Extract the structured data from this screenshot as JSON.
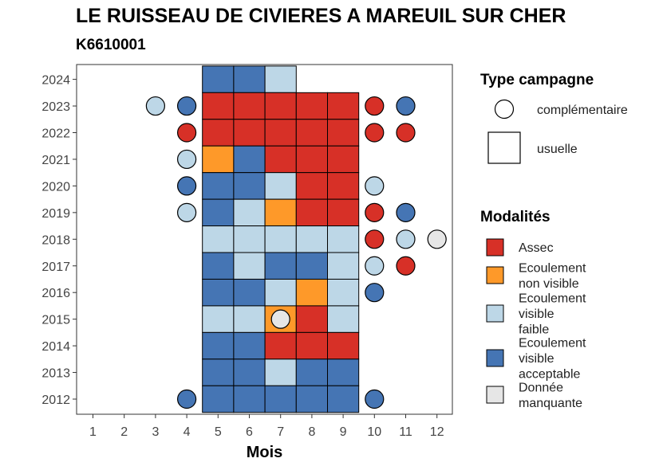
{
  "title": "LE RUISSEAU DE CIVIERES A MAREUIL SUR CHER",
  "subtitle": "K6610001",
  "colors": {
    "Assec": "#D73027",
    "Ecoulement non visible": "#FE9929",
    "Ecoulement visible faible": "#BDD7E7",
    "Ecoulement visible acceptable": "#4575B4",
    "Donnée manquante": "#E6E6E6"
  },
  "legend_campaign": {
    "title": "Type campagne",
    "items": [
      "complémentaire",
      "usuelle"
    ]
  },
  "legend_modalites": {
    "title": "Modalités",
    "items": [
      {
        "key": "Assec",
        "lines": [
          "Assec"
        ]
      },
      {
        "key": "Ecoulement non visible",
        "lines": [
          "Ecoulement",
          "non visible"
        ]
      },
      {
        "key": "Ecoulement visible faible",
        "lines": [
          "Ecoulement",
          "visible",
          "faible"
        ]
      },
      {
        "key": "Ecoulement visible acceptable",
        "lines": [
          "Ecoulement",
          "visible",
          "acceptable"
        ]
      },
      {
        "key": "Donnée manquante",
        "lines": [
          "Donnée",
          "manquante"
        ]
      }
    ]
  },
  "chart_data": {
    "type": "heatmap",
    "xlabel": "Mois",
    "ylabel": "",
    "x": [
      1,
      2,
      3,
      4,
      5,
      6,
      7,
      8,
      9,
      10,
      11,
      12
    ],
    "y": [
      2012,
      2013,
      2014,
      2015,
      2016,
      2017,
      2018,
      2019,
      2020,
      2021,
      2022,
      2023,
      2024
    ],
    "usuelle": [
      {
        "year": 2024,
        "month": 5,
        "value": "Ecoulement visible acceptable"
      },
      {
        "year": 2024,
        "month": 6,
        "value": "Ecoulement visible acceptable"
      },
      {
        "year": 2024,
        "month": 7,
        "value": "Ecoulement visible faible"
      },
      {
        "year": 2023,
        "month": 5,
        "value": "Assec"
      },
      {
        "year": 2023,
        "month": 6,
        "value": "Assec"
      },
      {
        "year": 2023,
        "month": 7,
        "value": "Assec"
      },
      {
        "year": 2023,
        "month": 8,
        "value": "Assec"
      },
      {
        "year": 2023,
        "month": 9,
        "value": "Assec"
      },
      {
        "year": 2022,
        "month": 5,
        "value": "Assec"
      },
      {
        "year": 2022,
        "month": 6,
        "value": "Assec"
      },
      {
        "year": 2022,
        "month": 7,
        "value": "Assec"
      },
      {
        "year": 2022,
        "month": 8,
        "value": "Assec"
      },
      {
        "year": 2022,
        "month": 9,
        "value": "Assec"
      },
      {
        "year": 2021,
        "month": 5,
        "value": "Ecoulement non visible"
      },
      {
        "year": 2021,
        "month": 6,
        "value": "Ecoulement visible acceptable"
      },
      {
        "year": 2021,
        "month": 7,
        "value": "Assec"
      },
      {
        "year": 2021,
        "month": 8,
        "value": "Assec"
      },
      {
        "year": 2021,
        "month": 9,
        "value": "Assec"
      },
      {
        "year": 2020,
        "month": 5,
        "value": "Ecoulement visible acceptable"
      },
      {
        "year": 2020,
        "month": 6,
        "value": "Ecoulement visible acceptable"
      },
      {
        "year": 2020,
        "month": 7,
        "value": "Ecoulement visible faible"
      },
      {
        "year": 2020,
        "month": 8,
        "value": "Assec"
      },
      {
        "year": 2020,
        "month": 9,
        "value": "Assec"
      },
      {
        "year": 2019,
        "month": 5,
        "value": "Ecoulement visible acceptable"
      },
      {
        "year": 2019,
        "month": 6,
        "value": "Ecoulement visible faible"
      },
      {
        "year": 2019,
        "month": 7,
        "value": "Ecoulement non visible"
      },
      {
        "year": 2019,
        "month": 8,
        "value": "Assec"
      },
      {
        "year": 2019,
        "month": 9,
        "value": "Assec"
      },
      {
        "year": 2018,
        "month": 5,
        "value": "Ecoulement visible faible"
      },
      {
        "year": 2018,
        "month": 6,
        "value": "Ecoulement visible faible"
      },
      {
        "year": 2018,
        "month": 7,
        "value": "Ecoulement visible faible"
      },
      {
        "year": 2018,
        "month": 8,
        "value": "Ecoulement visible faible"
      },
      {
        "year": 2018,
        "month": 9,
        "value": "Ecoulement visible faible"
      },
      {
        "year": 2017,
        "month": 5,
        "value": "Ecoulement visible acceptable"
      },
      {
        "year": 2017,
        "month": 6,
        "value": "Ecoulement visible faible"
      },
      {
        "year": 2017,
        "month": 7,
        "value": "Ecoulement visible acceptable"
      },
      {
        "year": 2017,
        "month": 8,
        "value": "Ecoulement visible acceptable"
      },
      {
        "year": 2017,
        "month": 9,
        "value": "Ecoulement visible faible"
      },
      {
        "year": 2016,
        "month": 5,
        "value": "Ecoulement visible acceptable"
      },
      {
        "year": 2016,
        "month": 6,
        "value": "Ecoulement visible acceptable"
      },
      {
        "year": 2016,
        "month": 7,
        "value": "Ecoulement visible faible"
      },
      {
        "year": 2016,
        "month": 8,
        "value": "Ecoulement non visible"
      },
      {
        "year": 2016,
        "month": 9,
        "value": "Ecoulement visible faible"
      },
      {
        "year": 2015,
        "month": 5,
        "value": "Ecoulement visible faible"
      },
      {
        "year": 2015,
        "month": 6,
        "value": "Ecoulement visible faible"
      },
      {
        "year": 2015,
        "month": 7,
        "value": "Ecoulement non visible"
      },
      {
        "year": 2015,
        "month": 8,
        "value": "Assec"
      },
      {
        "year": 2015,
        "month": 9,
        "value": "Ecoulement visible faible"
      },
      {
        "year": 2014,
        "month": 5,
        "value": "Ecoulement visible acceptable"
      },
      {
        "year": 2014,
        "month": 6,
        "value": "Ecoulement visible acceptable"
      },
      {
        "year": 2014,
        "month": 7,
        "value": "Assec"
      },
      {
        "year": 2014,
        "month": 8,
        "value": "Assec"
      },
      {
        "year": 2014,
        "month": 9,
        "value": "Assec"
      },
      {
        "year": 2013,
        "month": 5,
        "value": "Ecoulement visible acceptable"
      },
      {
        "year": 2013,
        "month": 6,
        "value": "Ecoulement visible acceptable"
      },
      {
        "year": 2013,
        "month": 7,
        "value": "Ecoulement visible faible"
      },
      {
        "year": 2013,
        "month": 8,
        "value": "Ecoulement visible acceptable"
      },
      {
        "year": 2013,
        "month": 9,
        "value": "Ecoulement visible acceptable"
      },
      {
        "year": 2012,
        "month": 5,
        "value": "Ecoulement visible acceptable"
      },
      {
        "year": 2012,
        "month": 6,
        "value": "Ecoulement visible acceptable"
      },
      {
        "year": 2012,
        "month": 7,
        "value": "Ecoulement visible acceptable"
      },
      {
        "year": 2012,
        "month": 8,
        "value": "Ecoulement visible acceptable"
      },
      {
        "year": 2012,
        "month": 9,
        "value": "Ecoulement visible acceptable"
      }
    ],
    "complementaire": [
      {
        "year": 2023,
        "month": 3,
        "value": "Ecoulement visible faible"
      },
      {
        "year": 2023,
        "month": 4,
        "value": "Ecoulement visible acceptable"
      },
      {
        "year": 2023,
        "month": 10,
        "value": "Assec"
      },
      {
        "year": 2023,
        "month": 11,
        "value": "Ecoulement visible acceptable"
      },
      {
        "year": 2022,
        "month": 4,
        "value": "Assec"
      },
      {
        "year": 2022,
        "month": 10,
        "value": "Assec"
      },
      {
        "year": 2022,
        "month": 11,
        "value": "Assec"
      },
      {
        "year": 2021,
        "month": 4,
        "value": "Ecoulement visible faible"
      },
      {
        "year": 2020,
        "month": 4,
        "value": "Ecoulement visible acceptable"
      },
      {
        "year": 2020,
        "month": 10,
        "value": "Ecoulement visible faible"
      },
      {
        "year": 2019,
        "month": 4,
        "value": "Ecoulement visible faible"
      },
      {
        "year": 2019,
        "month": 10,
        "value": "Assec"
      },
      {
        "year": 2019,
        "month": 11,
        "value": "Ecoulement visible acceptable"
      },
      {
        "year": 2018,
        "month": 10,
        "value": "Assec"
      },
      {
        "year": 2018,
        "month": 11,
        "value": "Ecoulement visible faible"
      },
      {
        "year": 2018,
        "month": 12,
        "value": "Donnée manquante"
      },
      {
        "year": 2017,
        "month": 10,
        "value": "Ecoulement visible faible"
      },
      {
        "year": 2017,
        "month": 11,
        "value": "Assec"
      },
      {
        "year": 2016,
        "month": 10,
        "value": "Ecoulement visible acceptable"
      },
      {
        "year": 2015,
        "month": 7,
        "value": "Donnée manquante"
      },
      {
        "year": 2012,
        "month": 4,
        "value": "Ecoulement visible acceptable"
      },
      {
        "year": 2012,
        "month": 10,
        "value": "Ecoulement visible acceptable"
      }
    ]
  }
}
